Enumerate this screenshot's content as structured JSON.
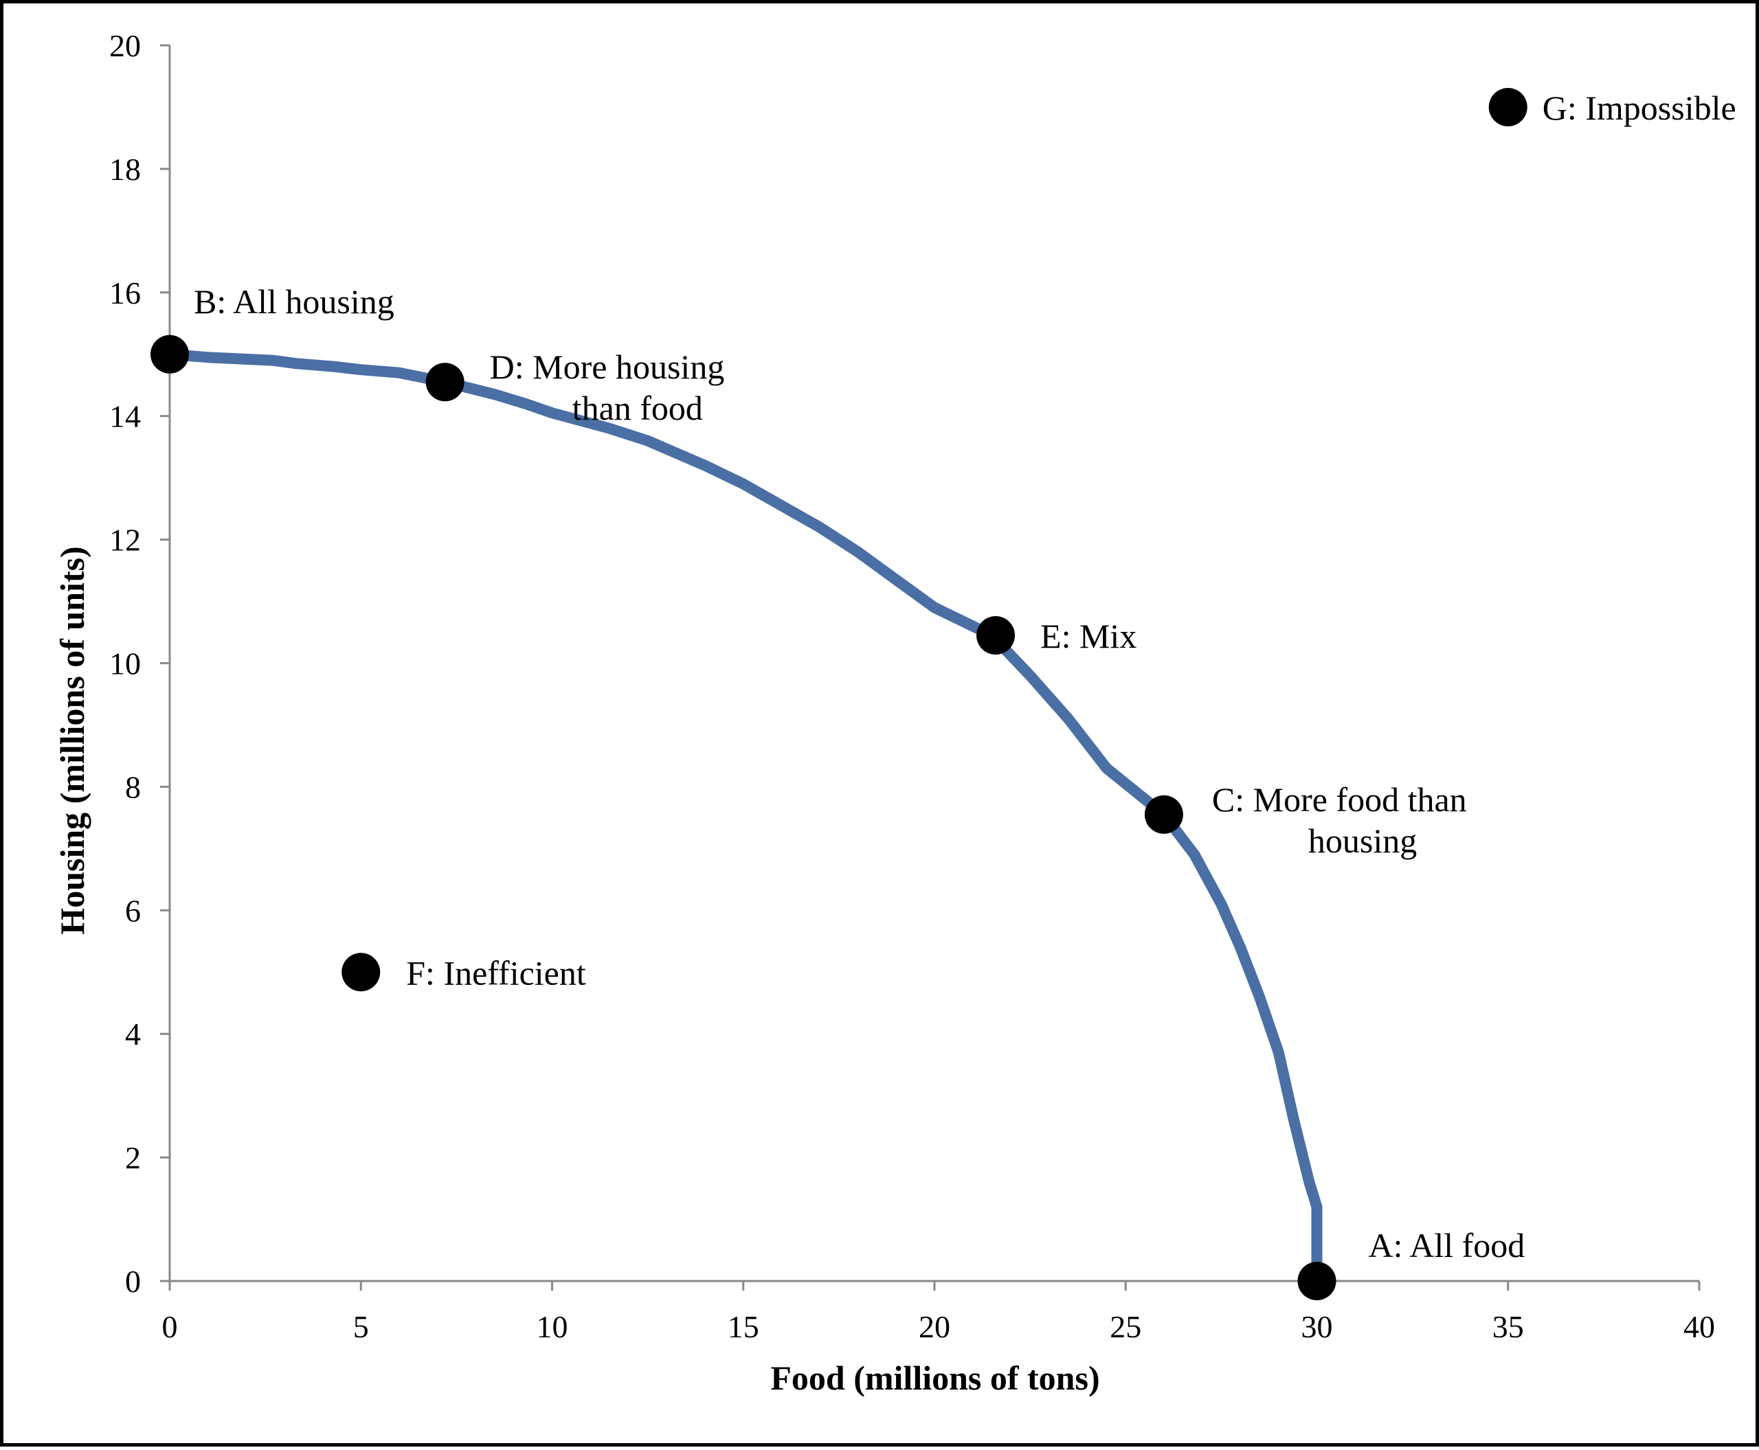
{
  "chart_data": {
    "type": "line",
    "title": "",
    "xlabel": "Food (millions of tons)",
    "ylabel": "Housing (millions of units)",
    "xlim": [
      0,
      40
    ],
    "ylim": [
      0,
      20
    ],
    "x_ticks": [
      0,
      5,
      10,
      15,
      20,
      25,
      30,
      35,
      40
    ],
    "y_ticks": [
      0,
      2,
      4,
      6,
      8,
      10,
      12,
      14,
      16,
      18,
      20
    ],
    "grid": false,
    "legend": "none",
    "curve_color": "#4a6fa5",
    "point_color": "#000000",
    "series": [
      {
        "x": [
          0,
          1,
          2.7,
          3.3,
          4.3,
          5,
          6,
          7.2,
          8.5,
          9.3,
          10,
          11.5,
          12.5,
          14,
          15,
          16,
          17,
          18,
          19,
          20,
          21.5,
          22.5,
          23.5,
          24.5,
          25.5,
          26,
          26.8,
          27.5,
          28,
          28.5,
          29,
          29.4,
          29.8,
          30,
          30
        ],
        "y": [
          15,
          14.95,
          14.9,
          14.85,
          14.8,
          14.75,
          14.7,
          14.55,
          14.35,
          14.2,
          14.05,
          13.8,
          13.6,
          13.2,
          12.9,
          12.55,
          12.2,
          11.8,
          11.35,
          10.9,
          10.45,
          9.8,
          9.1,
          8.3,
          7.8,
          7.55,
          6.9,
          6.1,
          5.4,
          4.6,
          3.7,
          2.6,
          1.6,
          1.2,
          0
        ]
      }
    ],
    "points": [
      {
        "label": "A: All food",
        "x": 30,
        "y": 0
      },
      {
        "label": "B: All housing",
        "x": 0,
        "y": 15
      },
      {
        "label": "C: More food than housing",
        "label_lines": [
          "C: More food than",
          "housing"
        ],
        "x": 26,
        "y": 7.55
      },
      {
        "label": "D: More housing than food",
        "label_lines": [
          "D: More housing",
          "than food"
        ],
        "x": 7.2,
        "y": 14.55
      },
      {
        "label": "E: Mix",
        "x": 21.6,
        "y": 10.45
      },
      {
        "label": "F: Inefficient",
        "x": 5,
        "y": 5
      },
      {
        "label": "G: Impossible",
        "x": 35,
        "y": 19
      }
    ]
  }
}
